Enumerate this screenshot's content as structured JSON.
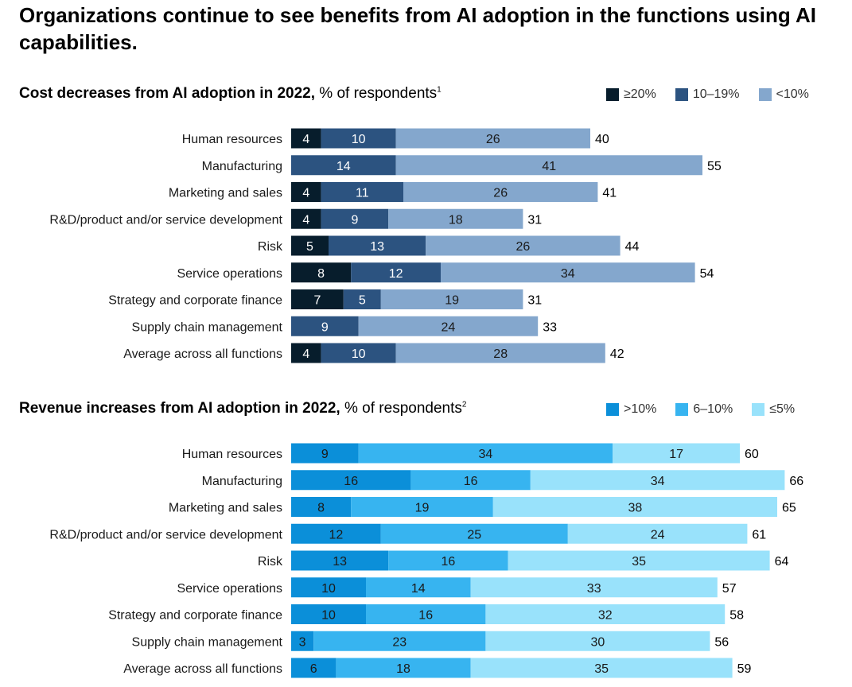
{
  "title": "Organizations continue to see benefits from AI adoption in the functions using AI capabilities.",
  "chart_data": [
    {
      "type": "bar",
      "orientation": "horizontal",
      "stacked": true,
      "title_bold": "Cost decreases from AI adoption in 2022,",
      "title_rest": " % of respondents",
      "footnote": "1",
      "categories": [
        "Human resources",
        "Manufacturing",
        "Marketing and sales",
        "R&D/product and/or service development",
        "Risk",
        "Service operations",
        "Strategy and corporate finance",
        "Supply chain management",
        "Average across all functions"
      ],
      "series": [
        {
          "name": "≥20%",
          "color": "#071d2c",
          "label_color": "#ffffff",
          "values": [
            4,
            0,
            4,
            4,
            5,
            8,
            7,
            0,
            4
          ]
        },
        {
          "name": "10–19%",
          "color": "#2c5380",
          "label_color": "#ffffff",
          "values": [
            10,
            14,
            11,
            9,
            13,
            12,
            5,
            9,
            10
          ]
        },
        {
          "name": "<10%",
          "color": "#84a7cd",
          "label_color": "#1a1a1a",
          "values": [
            26,
            41,
            26,
            18,
            26,
            34,
            19,
            24,
            28
          ]
        }
      ],
      "totals": [
        40,
        55,
        41,
        31,
        44,
        54,
        31,
        33,
        42
      ],
      "legend_position": "top-right",
      "grid": false
    },
    {
      "type": "bar",
      "orientation": "horizontal",
      "stacked": true,
      "title_bold": "Revenue increases from AI adoption in 2022,",
      "title_rest": " % of respondents",
      "footnote": "2",
      "categories": [
        "Human resources",
        "Manufacturing",
        "Marketing and sales",
        "R&D/product and/or service development",
        "Risk",
        "Service operations",
        "Strategy and corporate finance",
        "Supply chain management",
        "Average across all functions"
      ],
      "series": [
        {
          "name": ">10%",
          "color": "#0b8fd9",
          "label_color": "#1a1a1a",
          "values": [
            9,
            16,
            8,
            12,
            13,
            10,
            10,
            3,
            6
          ]
        },
        {
          "name": "6–10%",
          "color": "#37b4f0",
          "label_color": "#1a1a1a",
          "values": [
            34,
            16,
            19,
            25,
            16,
            14,
            16,
            23,
            18
          ]
        },
        {
          "name": "≤5%",
          "color": "#99e2fb",
          "label_color": "#1a1a1a",
          "values": [
            17,
            34,
            38,
            24,
            35,
            33,
            32,
            30,
            35
          ]
        }
      ],
      "totals": [
        60,
        66,
        65,
        61,
        64,
        57,
        58,
        56,
        59
      ],
      "legend_position": "top-right",
      "grid": false
    }
  ]
}
